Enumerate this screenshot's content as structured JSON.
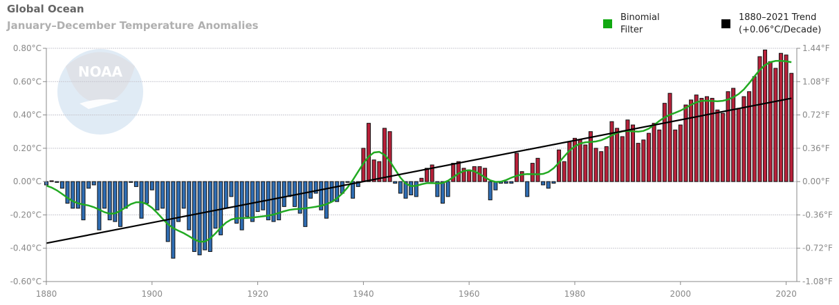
{
  "chart_data": {
    "type": "bar",
    "title": "Global Ocean",
    "subtitle": "January–December Temperature Anomalies",
    "x_start": 1880,
    "x_end": 2021,
    "values": [
      -0.02,
      0.005,
      -0.005,
      -0.04,
      -0.13,
      -0.16,
      -0.16,
      -0.23,
      -0.04,
      -0.02,
      -0.29,
      -0.16,
      -0.23,
      -0.24,
      -0.27,
      -0.16,
      -0.005,
      -0.03,
      -0.22,
      -0.13,
      -0.05,
      -0.17,
      -0.16,
      -0.36,
      -0.46,
      -0.24,
      -0.16,
      -0.29,
      -0.42,
      -0.44,
      -0.41,
      -0.42,
      -0.28,
      -0.32,
      -0.16,
      -0.09,
      -0.25,
      -0.29,
      -0.21,
      -0.24,
      -0.18,
      -0.17,
      -0.23,
      -0.24,
      -0.23,
      -0.15,
      -0.09,
      -0.15,
      -0.19,
      -0.27,
      -0.1,
      -0.07,
      -0.17,
      -0.22,
      -0.12,
      -0.12,
      -0.07,
      -0.005,
      -0.1,
      -0.03,
      0.2,
      0.35,
      0.13,
      0.12,
      0.32,
      0.3,
      -0.01,
      -0.07,
      -0.1,
      -0.08,
      -0.09,
      0.02,
      0.08,
      0.1,
      -0.09,
      -0.13,
      -0.09,
      0.11,
      0.12,
      0.08,
      0.07,
      0.09,
      0.09,
      0.08,
      -0.11,
      -0.05,
      -0.01,
      -0.01,
      -0.01,
      0.17,
      0.06,
      -0.09,
      0.11,
      0.14,
      -0.02,
      -0.04,
      -0.01,
      0.19,
      0.12,
      0.24,
      0.26,
      0.25,
      0.22,
      0.3,
      0.2,
      0.18,
      0.21,
      0.36,
      0.32,
      0.27,
      0.37,
      0.34,
      0.23,
      0.25,
      0.29,
      0.35,
      0.31,
      0.47,
      0.53,
      0.31,
      0.34,
      0.46,
      0.49,
      0.52,
      0.5,
      0.51,
      0.5,
      0.43,
      0.41,
      0.54,
      0.56,
      0.44,
      0.51,
      0.54,
      0.63,
      0.75,
      0.79,
      0.72,
      0.68,
      0.77,
      0.76,
      0.65
    ],
    "ylim": [
      -0.6,
      0.8
    ],
    "y_ticks": [
      "0.80°C",
      "0.60°C",
      "0.40°C",
      "0.20°C",
      "0.00°C",
      "-0.20°C",
      "-0.40°C",
      "-0.60°C"
    ],
    "y_ticks_right": [
      "1.44°F",
      "1.08°F",
      "0.72°F",
      "0.36°F",
      "0.00°F",
      "-0.36°F",
      "-0.72°F",
      "-1.08°F"
    ],
    "x_ticks": [
      "1880",
      "1900",
      "1920",
      "1940",
      "1960",
      "1980",
      "2000",
      "2020"
    ],
    "trend": {
      "start_year": 1880,
      "start_value": -0.37,
      "end_year": 2021,
      "end_value": 0.5
    },
    "grid": true,
    "legend_position": "top-right",
    "legend": [
      {
        "line1": "Binomial",
        "line2": "Filter",
        "color": "#11a811"
      },
      {
        "line1": "1880–2021 Trend",
        "line2": "(+0.06°C/Decade)",
        "color": "#000000"
      }
    ],
    "colors": {
      "positive": "#b8213a",
      "negative": "#2f6db3",
      "filter": "#22aa22",
      "trend": "#000000"
    },
    "watermark": "NOAA"
  }
}
